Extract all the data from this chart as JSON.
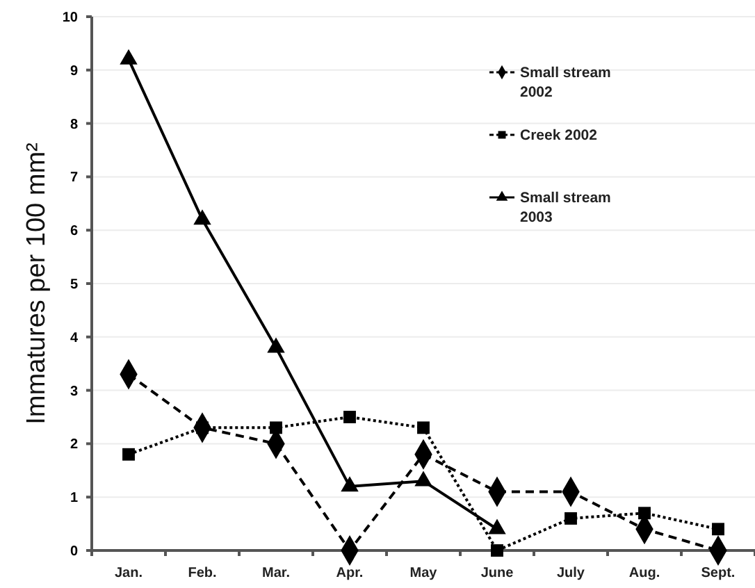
{
  "chart_data": {
    "type": "line",
    "ylabel": "Immatures per 100 mm²",
    "categories": [
      "Jan.",
      "Feb.",
      "Mar.",
      "Apr.",
      "May",
      "June",
      "July",
      "Aug.",
      "Sept."
    ],
    "series": [
      {
        "name": "Small stream 2002",
        "color": "#000000",
        "marker": "diamond",
        "line_style": "dashed",
        "values": [
          3.3,
          2.3,
          2.0,
          0,
          1.8,
          1.1,
          1.1,
          0.4,
          0
        ]
      },
      {
        "name": "Creek 2002",
        "color": "#000000",
        "marker": "square",
        "line_style": "dotted",
        "values": [
          1.8,
          2.3,
          2.3,
          2.5,
          2.3,
          0,
          0.6,
          0.7,
          0.4
        ]
      },
      {
        "name": "Small stream 2003",
        "color": "#000000",
        "marker": "triangle",
        "line_style": "solid",
        "values": [
          9.2,
          6.2,
          3.8,
          1.2,
          1.3,
          0.4,
          null,
          null,
          null
        ]
      }
    ],
    "ylim": [
      0,
      10
    ],
    "yticks": [
      0,
      1,
      2,
      3,
      4,
      5,
      6,
      7,
      8,
      9,
      10
    ],
    "grid": "y",
    "legend": "top right"
  }
}
